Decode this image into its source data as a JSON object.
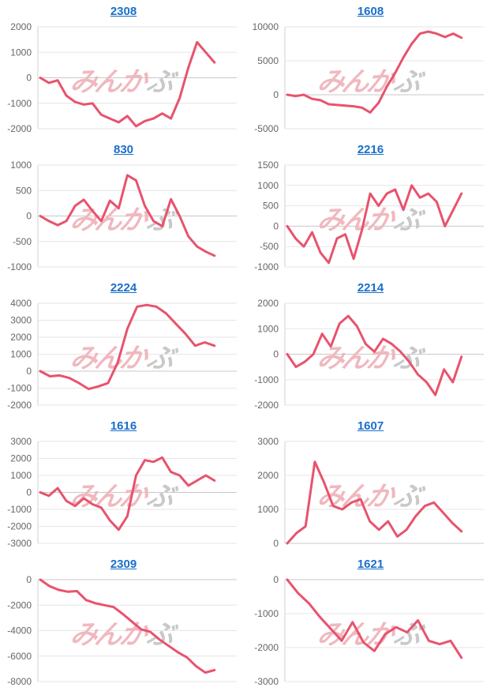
{
  "style": {
    "line_color": "#e8536d",
    "title_color": "#1a6fc9",
    "watermark_left_color": "#f0b8bf",
    "watermark_right_color": "#c9c9c9"
  },
  "watermark": {
    "left": "みんか",
    "right": "ぶ"
  },
  "chart_data": [
    {
      "type": "line",
      "title": "2308",
      "yticks": [
        2000,
        1000,
        0,
        -1000,
        -2000
      ],
      "ylim": [
        -2000,
        2000
      ],
      "series": [
        {
          "values": [
            0,
            -200,
            -100,
            -700,
            -950,
            -1050,
            -1000,
            -1450,
            -1600,
            -1750,
            -1500,
            -1900,
            -1700,
            -1600,
            -1400,
            -1600,
            -800,
            400,
            1400,
            1000,
            600
          ]
        }
      ]
    },
    {
      "type": "line",
      "title": "1608",
      "yticks": [
        10000,
        5000,
        0,
        -5000
      ],
      "ylim": [
        -5000,
        10000
      ],
      "series": [
        {
          "values": [
            0,
            -200,
            0,
            -600,
            -800,
            -1400,
            -1500,
            -1600,
            -1700,
            -1900,
            -2600,
            -1200,
            1200,
            3200,
            5500,
            7500,
            9000,
            9300,
            9000,
            8500,
            9000,
            8400
          ]
        }
      ]
    },
    {
      "type": "line",
      "title": "830",
      "yticks": [
        1000,
        500,
        0,
        -500,
        -1000
      ],
      "ylim": [
        -1000,
        1000
      ],
      "series": [
        {
          "values": [
            0,
            -100,
            -180,
            -100,
            200,
            320,
            100,
            -100,
            300,
            150,
            800,
            700,
            200,
            -100,
            -200,
            330,
            0,
            -400,
            -600,
            -700,
            -780
          ]
        }
      ]
    },
    {
      "type": "line",
      "title": "2216",
      "yticks": [
        1500,
        1000,
        500,
        0,
        -500,
        -1000
      ],
      "ylim": [
        -1000,
        1500
      ],
      "series": [
        {
          "values": [
            0,
            -300,
            -500,
            -150,
            -650,
            -900,
            -300,
            -200,
            -800,
            -100,
            800,
            500,
            800,
            900,
            400,
            1000,
            700,
            800,
            600,
            0,
            400,
            800
          ]
        }
      ]
    },
    {
      "type": "line",
      "title": "2224",
      "yticks": [
        4000,
        3000,
        2000,
        1000,
        0,
        -1000,
        -2000
      ],
      "ylim": [
        -2000,
        4000
      ],
      "series": [
        {
          "values": [
            0,
            -300,
            -250,
            -400,
            -700,
            -1050,
            -900,
            -700,
            500,
            2500,
            3800,
            3900,
            3800,
            3400,
            2800,
            2200,
            1500,
            1700,
            1500
          ]
        }
      ]
    },
    {
      "type": "line",
      "title": "2214",
      "yticks": [
        2000,
        1000,
        0,
        -1000,
        -2000
      ],
      "ylim": [
        -2000,
        2000
      ],
      "series": [
        {
          "values": [
            0,
            -500,
            -300,
            0,
            800,
            300,
            1200,
            1500,
            1100,
            400,
            100,
            600,
            400,
            100,
            -300,
            -800,
            -1100,
            -1600,
            -600,
            -1100,
            -100
          ]
        }
      ]
    },
    {
      "type": "line",
      "title": "1616",
      "yticks": [
        3000,
        2000,
        1000,
        0,
        -1000,
        -2000,
        -3000
      ],
      "ylim": [
        -3000,
        3000
      ],
      "series": [
        {
          "values": [
            0,
            -200,
            250,
            -500,
            -800,
            -350,
            -700,
            -900,
            -1650,
            -2200,
            -1400,
            1000,
            1900,
            1800,
            2050,
            1200,
            1000,
            400,
            700,
            1000,
            700
          ]
        }
      ]
    },
    {
      "type": "line",
      "title": "1607",
      "yticks": [
        3000,
        2000,
        1000,
        0
      ],
      "ylim": [
        0,
        3000
      ],
      "series": [
        {
          "values": [
            0,
            300,
            500,
            2400,
            1800,
            1100,
            1000,
            1200,
            1300,
            650,
            400,
            650,
            200,
            400,
            800,
            1100,
            1200,
            900,
            600,
            350
          ]
        }
      ]
    },
    {
      "type": "line",
      "title": "2309",
      "yticks": [
        0,
        -2000,
        -4000,
        -6000,
        -8000
      ],
      "ylim": [
        -8000,
        0
      ],
      "series": [
        {
          "values": [
            0,
            -500,
            -800,
            -950,
            -900,
            -1600,
            -1850,
            -2000,
            -2150,
            -2700,
            -3300,
            -3900,
            -4100,
            -4700,
            -5200,
            -5700,
            -6100,
            -6800,
            -7300,
            -7100
          ]
        }
      ]
    },
    {
      "type": "line",
      "title": "1621",
      "yticks": [
        0,
        -1000,
        -2000,
        -3000
      ],
      "ylim": [
        -3000,
        0
      ],
      "series": [
        {
          "values": [
            0,
            -400,
            -700,
            -1100,
            -1450,
            -1800,
            -1250,
            -1850,
            -2100,
            -1600,
            -1400,
            -1550,
            -1200,
            -1800,
            -1900,
            -1800,
            -2300
          ]
        }
      ]
    }
  ]
}
